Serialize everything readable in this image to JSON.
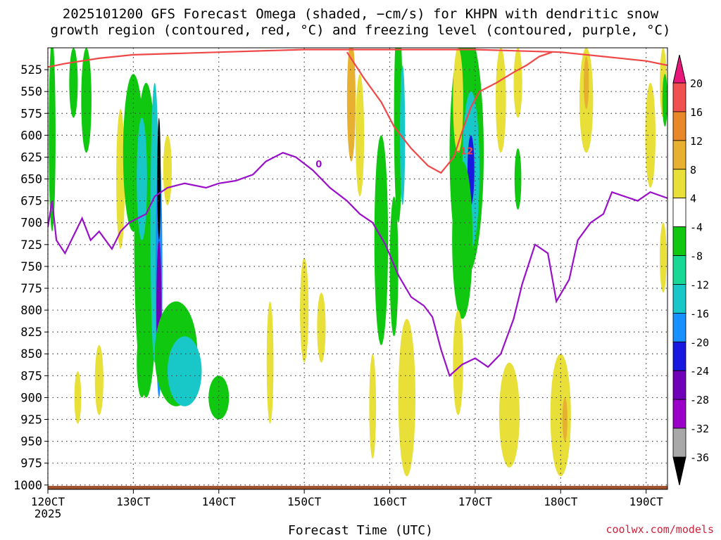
{
  "title_line1": "2025101200 GFS Forecast Omega (shaded, −cm/s) for KHPN with dendritic snow",
  "title_line2": "growth region (contoured, red, °C) and freezing level (contoured, purple, °C)",
  "credit": "coolwx.com/models",
  "chart_data": {
    "type": "heatmap",
    "xlabel": "Forecast Time (UTC)",
    "x_ticks": [
      "120CT",
      "130CT",
      "140CT",
      "150CT",
      "160CT",
      "170CT",
      "180CT",
      "190CT"
    ],
    "x_year": "2025",
    "x_range_days": [
      12.0,
      19.25
    ],
    "y_ticks": [
      525,
      550,
      575,
      600,
      625,
      650,
      675,
      700,
      725,
      750,
      775,
      800,
      825,
      850,
      875,
      900,
      925,
      950,
      975,
      1000
    ],
    "y_range_hpa": [
      500,
      1005
    ],
    "y_orientation": "pressure decreasing upward",
    "grid": true,
    "colorbar": {
      "levels": [
        -36,
        -32,
        -28,
        -24,
        -20,
        -16,
        -12,
        -8,
        -4,
        4,
        8,
        12,
        16,
        20
      ],
      "labels": [
        "-36",
        "-32",
        "-28",
        "-24",
        "-20",
        "-16",
        "-12",
        "-8",
        "-4",
        "4",
        "8",
        "12",
        "16",
        "20"
      ],
      "colors": [
        "#000000",
        "#a8a8a8",
        "#9a00c8",
        "#7000b8",
        "#1818e0",
        "#1890ff",
        "#18c8c8",
        "#18d896",
        "#10c810",
        "#ffffff",
        "#e8e038",
        "#e8b030",
        "#e88828",
        "#f05050",
        "#e8187a"
      ]
    },
    "contours": [
      {
        "name": "freezing level",
        "color": "#9a10c8",
        "label": "0",
        "points": [
          [
            12.0,
            705
          ],
          [
            12.05,
            675
          ],
          [
            12.1,
            720
          ],
          [
            12.2,
            735
          ],
          [
            12.3,
            715
          ],
          [
            12.4,
            695
          ],
          [
            12.5,
            720
          ],
          [
            12.6,
            710
          ],
          [
            12.75,
            730
          ],
          [
            12.85,
            710
          ],
          [
            12.95,
            700
          ],
          [
            13.05,
            695
          ],
          [
            13.15,
            690
          ],
          [
            13.25,
            670
          ],
          [
            13.4,
            660
          ],
          [
            13.6,
            655
          ],
          [
            13.85,
            660
          ],
          [
            14.0,
            655
          ],
          [
            14.2,
            652
          ],
          [
            14.4,
            645
          ],
          [
            14.55,
            630
          ],
          [
            14.75,
            620
          ],
          [
            14.9,
            625
          ],
          [
            15.1,
            640
          ],
          [
            15.3,
            660
          ],
          [
            15.5,
            675
          ],
          [
            15.65,
            690
          ],
          [
            15.8,
            700
          ],
          [
            15.95,
            725
          ],
          [
            16.1,
            760
          ],
          [
            16.25,
            785
          ],
          [
            16.4,
            795
          ],
          [
            16.5,
            808
          ],
          [
            16.6,
            845
          ],
          [
            16.7,
            875
          ],
          [
            16.85,
            862
          ],
          [
            17.0,
            855
          ],
          [
            17.15,
            865
          ],
          [
            17.3,
            850
          ],
          [
            17.45,
            810
          ],
          [
            17.55,
            770
          ],
          [
            17.7,
            725
          ],
          [
            17.85,
            735
          ],
          [
            17.95,
            790
          ],
          [
            18.1,
            765
          ],
          [
            18.2,
            720
          ],
          [
            18.35,
            700
          ],
          [
            18.5,
            690
          ],
          [
            18.6,
            665
          ],
          [
            18.75,
            670
          ],
          [
            18.9,
            675
          ],
          [
            19.05,
            665
          ],
          [
            19.25,
            672
          ]
        ]
      },
      {
        "name": "-12C upper",
        "color": "#f04848",
        "label": "-12",
        "points": [
          [
            15.5,
            505
          ],
          [
            15.7,
            535
          ],
          [
            15.9,
            562
          ],
          [
            16.05,
            590
          ],
          [
            16.25,
            615
          ],
          [
            16.45,
            635
          ],
          [
            16.6,
            643
          ],
          [
            16.75,
            625
          ],
          [
            16.85,
            595
          ],
          [
            16.95,
            568
          ],
          [
            17.05,
            550
          ],
          [
            17.15,
            545
          ],
          [
            17.25,
            540
          ],
          [
            17.45,
            528
          ],
          [
            17.6,
            520
          ],
          [
            17.75,
            510
          ],
          [
            17.9,
            505
          ]
        ]
      },
      {
        "name": "-12C top edge",
        "color": "#f04848",
        "label": "",
        "points": [
          [
            12.0,
            522
          ],
          [
            12.2,
            518
          ],
          [
            12.6,
            512
          ],
          [
            13.0,
            508
          ],
          [
            14.0,
            505
          ],
          [
            15.0,
            502
          ],
          [
            16.0,
            502
          ],
          [
            17.0,
            502
          ],
          [
            18.0,
            505
          ],
          [
            18.5,
            510
          ],
          [
            19.0,
            515
          ],
          [
            19.25,
            520
          ]
        ]
      }
    ]
  }
}
